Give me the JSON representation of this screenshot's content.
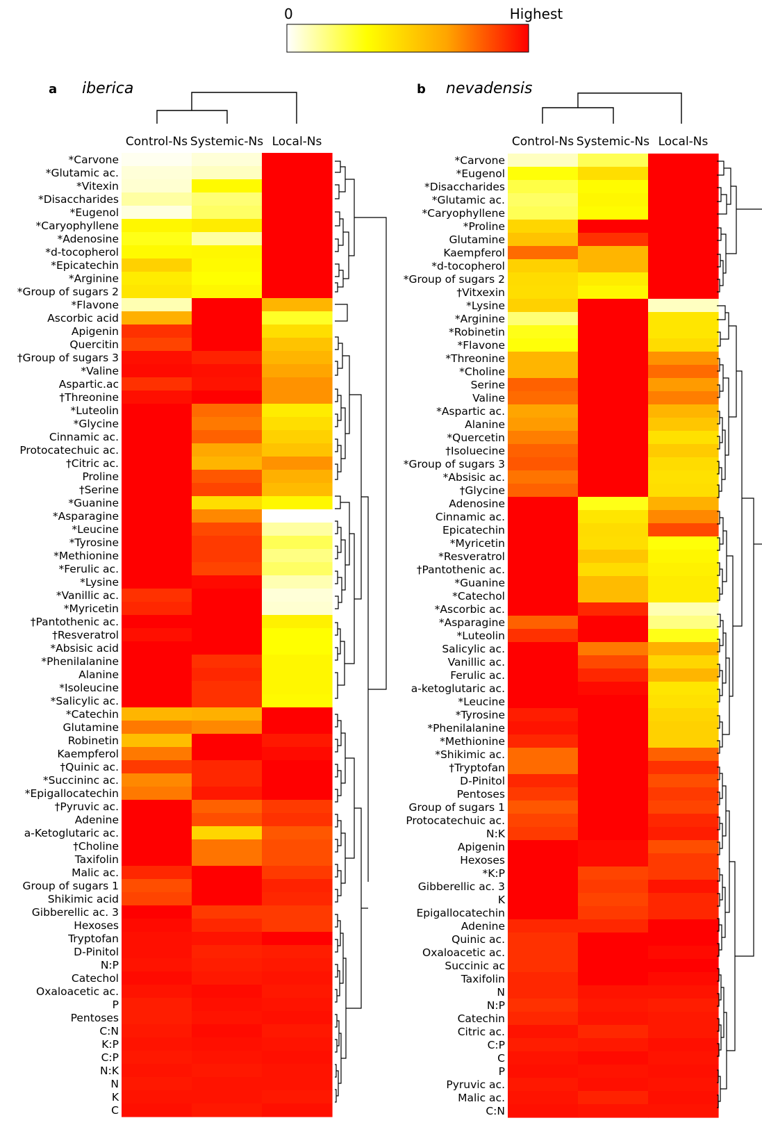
{
  "legend": {
    "min_label": "0",
    "max_label": "Highest",
    "colors": [
      "#ffffff",
      "#ffff00",
      "#ffa500",
      "#ff0000"
    ]
  },
  "chart_data": [
    {
      "type": "heatmap",
      "panel_letter": "a",
      "title": "iberica",
      "columns": [
        "Control-Ns",
        "Systemic-Ns",
        "Local-Ns"
      ],
      "rows": [
        "*Carvone",
        "*Glutamic ac.",
        "*Vitexin",
        "*Disaccharides",
        "*Eugenol",
        "*Caryophyllene",
        "*Adenosine",
        "*d-tocopherol",
        "*Epicatechin",
        "*Arginine",
        "*Group of sugars 2",
        "*Flavone",
        "Ascorbic acid",
        "Apigenin",
        "Quercitin",
        "†Group of sugars 3",
        "*Valine",
        "Aspartic.ac",
        "†Threonine",
        "*Luteolin",
        "*Glycine",
        "Cinnamic ac.",
        "Protocatechuic ac.",
        "†Citric ac.",
        "Proline",
        "†Serine",
        "*Guanine",
        "*Asparagine",
        "*Leucine",
        "*Tyrosine",
        "*Methionine",
        "*Ferulic ac.",
        "*Lysine",
        "*Vanillic ac.",
        "*Myricetin",
        "†Pantothenic ac.",
        "†Resveratrol",
        "*Absisic acid",
        "*Phenilalanine",
        "Alanine",
        "*Isoleucine",
        "*Salicylic ac.",
        "*Catechin",
        "Glutamine",
        "Robinetin",
        "Kaempferol",
        "†Quinic ac.",
        "*Succininc ac.",
        "*Epigallocatechin",
        "†Pyruvic ac.",
        "Adenine",
        "a-Ketoglutaric ac.",
        "†Choline",
        "Taxifolin",
        "Malic ac.",
        "Group of sugars 1",
        "Shikimic acid",
        "Gibberellic ac. 3",
        "Hexoses",
        "Tryptofan",
        "D-Pinitol",
        "N:P",
        "Catechol",
        "Oxaloacetic ac.",
        "P",
        "Pentoses",
        "C:N",
        "K:P",
        "C:P",
        "N:K",
        "N",
        "K",
        "C"
      ],
      "values": [
        [
          0.02,
          0.05,
          1.0
        ],
        [
          0.05,
          0.08,
          1.0
        ],
        [
          0.06,
          0.35,
          1.0
        ],
        [
          0.12,
          0.18,
          1.0
        ],
        [
          0.04,
          0.2,
          1.0
        ],
        [
          0.36,
          0.4,
          1.0
        ],
        [
          0.3,
          0.12,
          1.0
        ],
        [
          0.35,
          0.36,
          1.0
        ],
        [
          0.5,
          0.35,
          1.0
        ],
        [
          0.4,
          0.33,
          1.0
        ],
        [
          0.42,
          0.36,
          1.0
        ],
        [
          0.1,
          1.0,
          0.6
        ],
        [
          0.62,
          1.0,
          0.28
        ],
        [
          0.9,
          1.0,
          0.45
        ],
        [
          0.86,
          1.0,
          0.55
        ],
        [
          0.97,
          0.93,
          0.6
        ],
        [
          0.98,
          0.97,
          0.66
        ],
        [
          0.9,
          0.96,
          0.7
        ],
        [
          0.97,
          1.0,
          0.7
        ],
        [
          1.0,
          0.78,
          0.4
        ],
        [
          1.0,
          0.75,
          0.45
        ],
        [
          1.0,
          0.8,
          0.5
        ],
        [
          1.0,
          0.65,
          0.55
        ],
        [
          1.0,
          0.6,
          0.7
        ],
        [
          1.0,
          0.82,
          0.62
        ],
        [
          1.0,
          0.86,
          0.58
        ],
        [
          1.0,
          0.45,
          0.36
        ],
        [
          1.0,
          0.72,
          0.0
        ],
        [
          1.0,
          0.85,
          0.12
        ],
        [
          1.0,
          0.88,
          0.22
        ],
        [
          1.0,
          0.88,
          0.16
        ],
        [
          1.0,
          0.86,
          0.2
        ],
        [
          1.0,
          0.98,
          0.1
        ],
        [
          0.9,
          1.0,
          0.05
        ],
        [
          0.92,
          1.0,
          0.06
        ],
        [
          1.0,
          1.0,
          0.38
        ],
        [
          0.97,
          1.0,
          0.33
        ],
        [
          1.0,
          1.0,
          0.33
        ],
        [
          1.0,
          0.9,
          0.36
        ],
        [
          1.0,
          0.92,
          0.36
        ],
        [
          1.0,
          0.9,
          0.36
        ],
        [
          1.0,
          0.9,
          0.35
        ],
        [
          0.6,
          0.62,
          1.0
        ],
        [
          0.75,
          0.72,
          1.0
        ],
        [
          0.57,
          1.0,
          0.95
        ],
        [
          0.75,
          1.0,
          0.98
        ],
        [
          0.88,
          0.92,
          1.0
        ],
        [
          0.72,
          0.92,
          1.0
        ],
        [
          0.75,
          0.95,
          1.0
        ],
        [
          1.0,
          0.8,
          0.88
        ],
        [
          1.0,
          0.84,
          0.9
        ],
        [
          1.0,
          0.48,
          0.82
        ],
        [
          1.0,
          0.76,
          0.84
        ],
        [
          1.0,
          0.76,
          0.84
        ],
        [
          0.92,
          1.0,
          0.88
        ],
        [
          0.84,
          1.0,
          0.93
        ],
        [
          0.86,
          1.0,
          0.92
        ],
        [
          1.0,
          0.88,
          0.88
        ],
        [
          0.98,
          0.92,
          0.88
        ],
        [
          0.97,
          0.96,
          1.0
        ],
        [
          0.97,
          0.93,
          0.94
        ],
        [
          0.96,
          0.94,
          0.95
        ],
        [
          0.98,
          0.95,
          0.96
        ],
        [
          0.96,
          0.98,
          0.95
        ],
        [
          0.94,
          0.97,
          0.96
        ],
        [
          0.94,
          0.96,
          0.97
        ],
        [
          0.95,
          0.98,
          0.95
        ],
        [
          0.96,
          0.97,
          0.96
        ],
        [
          0.95,
          0.96,
          0.97
        ],
        [
          0.96,
          0.95,
          0.96
        ],
        [
          0.95,
          0.96,
          0.96
        ],
        [
          0.96,
          0.96,
          0.95
        ],
        [
          0.97,
          0.95,
          0.97
        ]
      ]
    },
    {
      "type": "heatmap",
      "panel_letter": "b",
      "title": "nevadensis",
      "columns": [
        "Control-Ns",
        "Systemic-Ns",
        "Local-Ns"
      ],
      "rows": [
        "*Carvone",
        "*Eugenol",
        "*Disaccharides",
        "*Glutamic ac.",
        "*Caryophyllene",
        "*Proline",
        "Glutamine",
        "Kaempferol",
        "*d-tocopherol",
        "*Group of sugars 2",
        "†Vitxexin",
        "*Lysine",
        "*Arginine",
        "*Robinetin",
        "*Flavone",
        "*Threonine",
        "*Choline",
        "Serine",
        "Valine",
        "*Aspartic ac.",
        "Alanine",
        "*Quercetin",
        "†Isoluecine",
        "*Group of sugars 3",
        "*Absisic ac.",
        "†Glycine",
        "Adenosine",
        "Cinnamic ac.",
        "Epicatechin",
        "*Myricetin",
        "*Resveratrol",
        "†Pantothenic ac.",
        "*Guanine",
        "*Catechol",
        "*Ascorbic ac.",
        "*Asparagine",
        "*Luteolin",
        "Salicylic ac.",
        "Vanillic ac.",
        "Ferulic ac.",
        "a-ketoglutaric ac.",
        "*Leucine",
        "*Tyrosine",
        "*Phenilalanine",
        "*Methionine",
        "*Shikimic ac.",
        "†Tryptofan",
        "D-Pinitol",
        "Pentoses",
        "Group of sugars 1",
        "Protocatechuic ac.",
        "N:K",
        "Apigenin",
        "Hexoses",
        "*K:P",
        "Gibberellic ac. 3",
        "K",
        "Epigallocatechin",
        "Adenine",
        "Quinic ac.",
        "Oxaloacetic ac.",
        "Succinic ac",
        "Taxifolin",
        "N",
        "N:P",
        "Catechin",
        "Citric ac.",
        "C:P",
        "C",
        "P",
        "Pyruvic ac.",
        "Malic ac.",
        "C:N"
      ],
      "values": [
        [
          0.08,
          0.22,
          1.0
        ],
        [
          0.32,
          0.45,
          1.0
        ],
        [
          0.24,
          0.34,
          1.0
        ],
        [
          0.2,
          0.36,
          1.0
        ],
        [
          0.22,
          0.34,
          1.0
        ],
        [
          0.48,
          1.0,
          1.0
        ],
        [
          0.55,
          0.9,
          1.0
        ],
        [
          0.78,
          0.6,
          1.0
        ],
        [
          0.5,
          0.6,
          1.0
        ],
        [
          0.46,
          0.4,
          1.0
        ],
        [
          0.45,
          0.36,
          1.0
        ],
        [
          0.5,
          1.0,
          0.08
        ],
        [
          0.18,
          1.0,
          0.42
        ],
        [
          0.3,
          1.0,
          0.42
        ],
        [
          0.32,
          1.0,
          0.46
        ],
        [
          0.6,
          1.0,
          0.7
        ],
        [
          0.6,
          1.0,
          0.78
        ],
        [
          0.8,
          1.0,
          0.68
        ],
        [
          0.78,
          1.0,
          0.74
        ],
        [
          0.66,
          1.0,
          0.6
        ],
        [
          0.68,
          1.0,
          0.54
        ],
        [
          0.74,
          1.0,
          0.44
        ],
        [
          0.8,
          1.0,
          0.52
        ],
        [
          0.82,
          1.0,
          0.46
        ],
        [
          0.76,
          1.0,
          0.44
        ],
        [
          0.8,
          1.0,
          0.45
        ],
        [
          1.0,
          0.3,
          0.62
        ],
        [
          1.0,
          0.42,
          0.72
        ],
        [
          1.0,
          0.46,
          0.85
        ],
        [
          1.0,
          0.45,
          0.32
        ],
        [
          1.0,
          0.54,
          0.36
        ],
        [
          1.0,
          0.46,
          0.38
        ],
        [
          1.0,
          0.58,
          0.4
        ],
        [
          1.0,
          0.58,
          0.4
        ],
        [
          1.0,
          0.92,
          0.1
        ],
        [
          0.8,
          1.0,
          0.16
        ],
        [
          0.9,
          1.0,
          0.3
        ],
        [
          1.0,
          0.75,
          0.62
        ],
        [
          1.0,
          0.85,
          0.48
        ],
        [
          1.0,
          0.92,
          0.6
        ],
        [
          1.0,
          0.98,
          0.42
        ],
        [
          1.0,
          1.0,
          0.44
        ],
        [
          0.94,
          1.0,
          0.48
        ],
        [
          0.96,
          1.0,
          0.5
        ],
        [
          0.92,
          1.0,
          0.5
        ],
        [
          0.78,
          1.0,
          0.8
        ],
        [
          0.78,
          1.0,
          0.9
        ],
        [
          0.92,
          1.0,
          0.84
        ],
        [
          0.88,
          1.0,
          0.88
        ],
        [
          0.82,
          1.0,
          0.86
        ],
        [
          0.86,
          1.0,
          0.92
        ],
        [
          0.88,
          1.0,
          0.94
        ],
        [
          1.0,
          0.98,
          0.84
        ],
        [
          1.0,
          0.98,
          0.88
        ],
        [
          1.0,
          0.86,
          0.88
        ],
        [
          1.0,
          0.88,
          0.96
        ],
        [
          1.0,
          0.86,
          0.92
        ],
        [
          1.0,
          0.88,
          0.92
        ],
        [
          0.92,
          0.92,
          1.0
        ],
        [
          0.9,
          1.0,
          1.0
        ],
        [
          0.9,
          1.0,
          0.98
        ],
        [
          0.9,
          1.0,
          1.0
        ],
        [
          0.92,
          1.0,
          0.98
        ],
        [
          0.92,
          0.96,
          0.96
        ],
        [
          0.9,
          0.95,
          0.94
        ],
        [
          0.92,
          0.96,
          0.95
        ],
        [
          0.96,
          0.92,
          0.95
        ],
        [
          0.94,
          0.95,
          0.97
        ],
        [
          0.96,
          0.98,
          0.96
        ],
        [
          0.97,
          0.96,
          0.97
        ],
        [
          0.95,
          0.97,
          0.96
        ],
        [
          0.96,
          0.93,
          0.97
        ],
        [
          0.97,
          0.96,
          0.96
        ]
      ]
    }
  ]
}
